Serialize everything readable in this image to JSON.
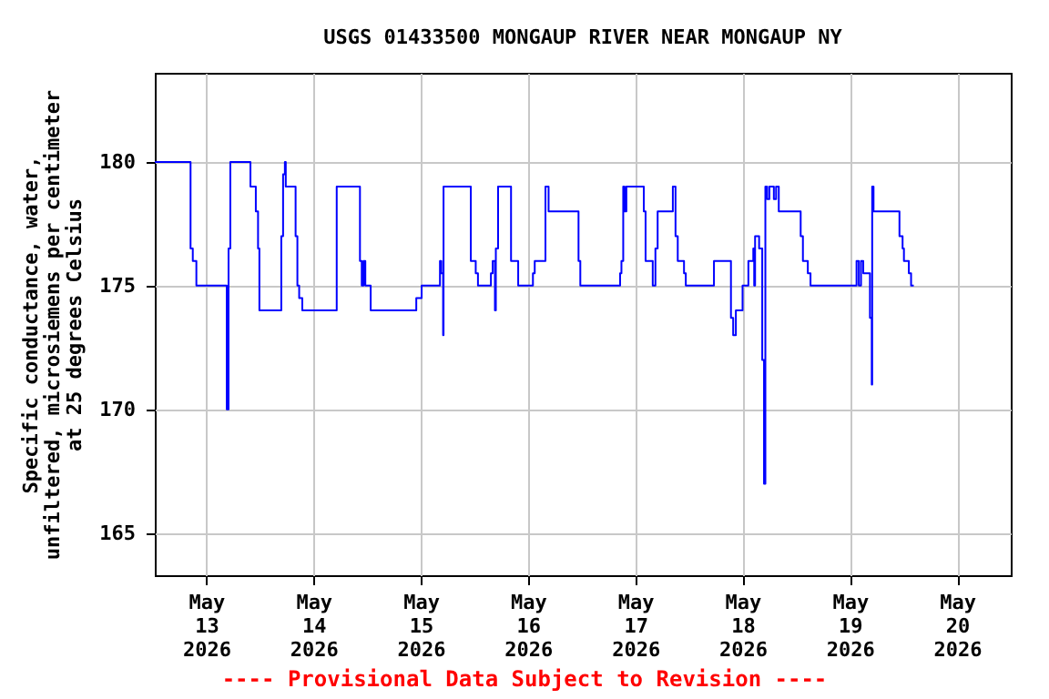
{
  "chart_data": {
    "type": "step",
    "title": "USGS 01433500 MONGAUP RIVER NEAR MONGAUP NY",
    "ylabel": "Specific conductance, water,\nunfiltered, microsiemens per centimeter\nat 25 degrees Celsius",
    "annotations": [
      "---- Provisional Data Subject to Revision ----"
    ],
    "xlim": [
      "2026-05-12T12:30",
      "2026-05-20T12:00"
    ],
    "xticks": [
      {
        "value": "2026-05-13T00:00",
        "label": "May 13 2026"
      },
      {
        "value": "2026-05-14T00:00",
        "label": "May 14 2026"
      },
      {
        "value": "2026-05-15T00:00",
        "label": "May 15 2026"
      },
      {
        "value": "2026-05-16T00:00",
        "label": "May 16 2026"
      },
      {
        "value": "2026-05-17T00:00",
        "label": "May 17 2026"
      },
      {
        "value": "2026-05-18T00:00",
        "label": "May 18 2026"
      },
      {
        "value": "2026-05-19T00:00",
        "label": "May 19 2026"
      },
      {
        "value": "2026-05-20T00:00",
        "label": "May 20 2026"
      }
    ],
    "ylim": [
      163.3,
      183.6
    ],
    "yticks": [
      165,
      170,
      175,
      180
    ],
    "grid": true,
    "series": [
      {
        "color": "#0000ff",
        "x": [
          "2026-05-12T12:30",
          "2026-05-12T20:30",
          "2026-05-12T21:00",
          "2026-05-12T21:48",
          "2026-05-13T04:36",
          "2026-05-13T05:00",
          "2026-05-13T05:24",
          "2026-05-13T09:54",
          "2026-05-13T11:06",
          "2026-05-13T11:36",
          "2026-05-13T11:54",
          "2026-05-13T16:48",
          "2026-05-13T17:12",
          "2026-05-13T17:36",
          "2026-05-13T17:48",
          "2026-05-13T20:00",
          "2026-05-13T20:24",
          "2026-05-13T20:48",
          "2026-05-13T21:30",
          "2026-05-14T05:12",
          "2026-05-14T10:24",
          "2026-05-14T10:48",
          "2026-05-14T11:12",
          "2026-05-14T11:36",
          "2026-05-14T12:48",
          "2026-05-14T23:00",
          "2026-05-15T00:12",
          "2026-05-15T04:18",
          "2026-05-15T04:36",
          "2026-05-15T05:00",
          "2026-05-15T05:06",
          "2026-05-15T11:12",
          "2026-05-15T12:18",
          "2026-05-15T12:48",
          "2026-05-15T15:42",
          "2026-05-15T16:06",
          "2026-05-15T16:36",
          "2026-05-15T16:48",
          "2026-05-15T17:18",
          "2026-05-15T20:12",
          "2026-05-15T21:48",
          "2026-05-16T01:06",
          "2026-05-16T01:30",
          "2026-05-16T03:54",
          "2026-05-16T04:36",
          "2026-05-16T11:18",
          "2026-05-16T11:42",
          "2026-05-16T20:36",
          "2026-05-16T20:54",
          "2026-05-16T21:18",
          "2026-05-16T21:36",
          "2026-05-16T22:00",
          "2026-05-17T01:54",
          "2026-05-17T02:18",
          "2026-05-17T03:54",
          "2026-05-17T04:30",
          "2026-05-17T05:00",
          "2026-05-17T08:24",
          "2026-05-17T09:00",
          "2026-05-17T09:30",
          "2026-05-17T10:54",
          "2026-05-17T11:18",
          "2026-05-17T17:36",
          "2026-05-17T21:24",
          "2026-05-17T21:54",
          "2026-05-17T22:30",
          "2026-05-18T00:00",
          "2026-05-18T01:18",
          "2026-05-18T02:24",
          "2026-05-18T02:36",
          "2026-05-18T02:48",
          "2026-05-18T03:42",
          "2026-05-18T04:24",
          "2026-05-18T04:48",
          "2026-05-18T05:06",
          "2026-05-18T05:30",
          "2026-05-18T06:00",
          "2026-05-18T07:00",
          "2026-05-18T07:30",
          "2026-05-18T08:06",
          "2026-05-18T13:00",
          "2026-05-18T13:30",
          "2026-05-18T14:36",
          "2026-05-18T15:12",
          "2026-05-19T01:30",
          "2026-05-19T02:00",
          "2026-05-19T02:30",
          "2026-05-19T03:00",
          "2026-05-19T04:30",
          "2026-05-19T04:54",
          "2026-05-19T05:00",
          "2026-05-19T05:18",
          "2026-05-19T11:06",
          "2026-05-19T11:48",
          "2026-05-19T12:06",
          "2026-05-19T13:12",
          "2026-05-19T13:42",
          "2026-05-19T14:18"
        ],
        "values": [
          180,
          176.5,
          176,
          175,
          170,
          176.5,
          180,
          179,
          178,
          176.5,
          174,
          177,
          179.5,
          180,
          179,
          177,
          175,
          174.5,
          174,
          179,
          176,
          175,
          176,
          175,
          174,
          174.5,
          175,
          176,
          175.5,
          173,
          179,
          176,
          175.5,
          175,
          175.5,
          176,
          174,
          176.5,
          179,
          176,
          175,
          175.5,
          176,
          179,
          178,
          176,
          175,
          175.5,
          176,
          179,
          178,
          179,
          178,
          176,
          175,
          176.5,
          178,
          179,
          177,
          176,
          175.5,
          175,
          176,
          173.7,
          173,
          174,
          175,
          176,
          176.5,
          175,
          177,
          176.5,
          172,
          167,
          179,
          178.5,
          179,
          178.5,
          179,
          178,
          177,
          176,
          175.5,
          175,
          176,
          175,
          176,
          175.5,
          173.7,
          171,
          179,
          178,
          177,
          176.5,
          176,
          175.5,
          175,
          175
        ]
      }
    ]
  }
}
